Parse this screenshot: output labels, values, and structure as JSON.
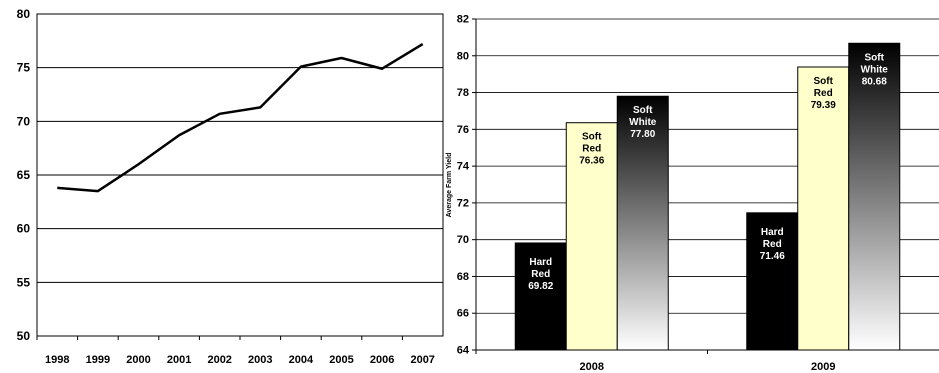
{
  "colors": {
    "line": "#000000",
    "hard_red": "#000000",
    "soft_red": "#ffffcc",
    "soft_white_top": "#000000",
    "soft_white_bottom": "#ffffff",
    "grid": "#000000"
  },
  "chart_data": [
    {
      "type": "line",
      "title": "",
      "xlabel": "",
      "ylabel": "",
      "x": [
        "1998",
        "1999",
        "2000",
        "2001",
        "2002",
        "2003",
        "2004",
        "2005",
        "2006",
        "2007"
      ],
      "series": [
        {
          "values": [
            63.8,
            63.5,
            66.0,
            68.7,
            70.7,
            71.3,
            75.1,
            75.9,
            74.9,
            77.2
          ]
        }
      ],
      "ylim": [
        50,
        80
      ],
      "yticks": [
        "50",
        "55",
        "60",
        "65",
        "70",
        "75",
        "80"
      ],
      "grid": true
    },
    {
      "type": "bar",
      "title": "",
      "xlabel": "",
      "ylabel": "Average Farm Yield",
      "categories": [
        "2008",
        "2009"
      ],
      "series": [
        {
          "name": "Hard Red",
          "label_lines": [
            "Hard",
            "Red"
          ],
          "values": [
            69.82,
            71.46
          ],
          "value_labels": [
            "69.82",
            "71.46"
          ]
        },
        {
          "name": "Soft Red",
          "label_lines": [
            "Soft",
            "Red"
          ],
          "values": [
            76.36,
            79.39
          ],
          "value_labels": [
            "76.36",
            "79.39"
          ]
        },
        {
          "name": "Soft White",
          "label_lines": [
            "Soft",
            "White"
          ],
          "values": [
            77.8,
            80.68
          ],
          "value_labels": [
            "77.80",
            "80.68"
          ]
        }
      ],
      "ylim": [
        64,
        82
      ],
      "yticks": [
        "64",
        "66",
        "68",
        "70",
        "72",
        "74",
        "76",
        "78",
        "80",
        "82"
      ],
      "grid": true
    }
  ]
}
